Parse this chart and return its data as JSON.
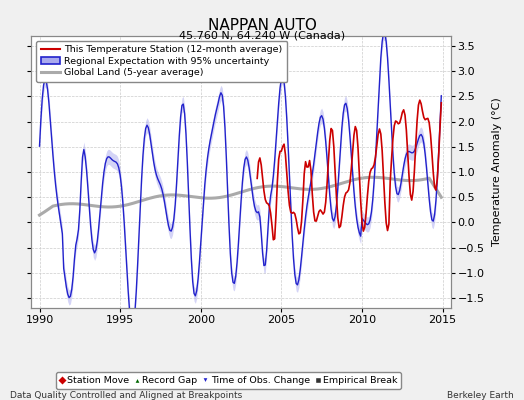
{
  "title": "NAPPAN AUTO",
  "subtitle": "45.760 N, 64.240 W (Canada)",
  "ylabel": "Temperature Anomaly (°C)",
  "xlabel_left": "Data Quality Controlled and Aligned at Breakpoints",
  "xlabel_right": "Berkeley Earth",
  "xlim": [
    1989.5,
    2015.5
  ],
  "ylim": [
    -1.7,
    3.7
  ],
  "yticks": [
    -1.5,
    -1.0,
    -0.5,
    0,
    0.5,
    1.0,
    1.5,
    2.0,
    2.5,
    3.0,
    3.5
  ],
  "xticks": [
    1990,
    1995,
    2000,
    2005,
    2010,
    2015
  ],
  "bg_color": "#f0f0f0",
  "plot_bg": "#ffffff",
  "regional_color": "#2222cc",
  "station_color": "#cc0000",
  "global_color": "#aaaaaa",
  "uncertainty_color": "#aaaaee",
  "legend_items": [
    {
      "label": "This Temperature Station (12-month average)",
      "color": "#cc0000"
    },
    {
      "label": "Regional Expectation with 95% uncertainty",
      "color": "#2222cc"
    },
    {
      "label": "Global Land (5-year average)",
      "color": "#aaaaaa"
    }
  ],
  "marker_items": [
    {
      "label": "Station Move",
      "marker": "D",
      "color": "#cc0000"
    },
    {
      "label": "Record Gap",
      "marker": "^",
      "color": "#006600"
    },
    {
      "label": "Time of Obs. Change",
      "marker": "v",
      "color": "#2222cc"
    },
    {
      "label": "Empirical Break",
      "marker": "s",
      "color": "#333333"
    }
  ]
}
